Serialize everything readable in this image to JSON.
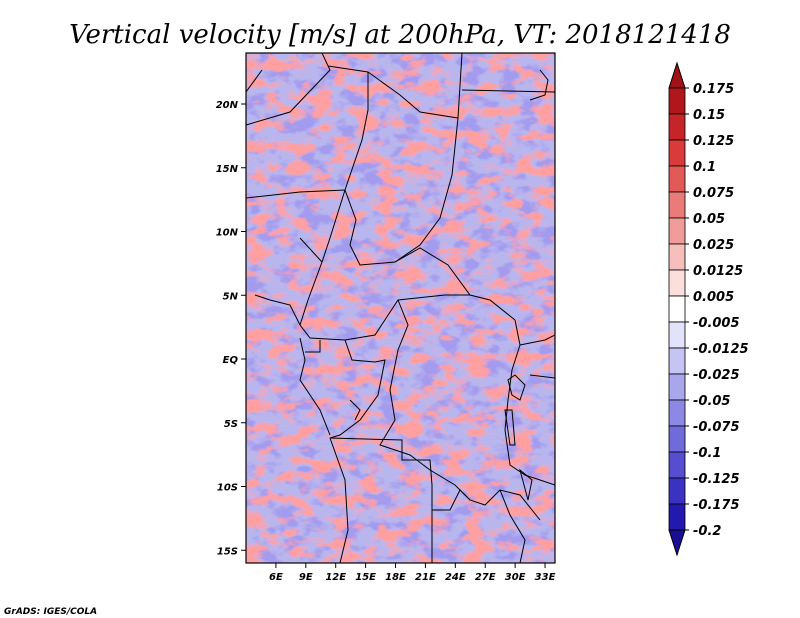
{
  "title": "Vertical velocity [m/s] at 200hPa, VT: 2018121418",
  "credit": "GrADS: IGES/COLA",
  "map": {
    "lon_range": [
      3,
      34
    ],
    "lat_range": [
      -16,
      24
    ],
    "lon_ticks": [
      6,
      9,
      12,
      15,
      18,
      21,
      24,
      27,
      30,
      33
    ],
    "lon_labels": [
      "6E",
      "9E",
      "12E",
      "15E",
      "18E",
      "21E",
      "24E",
      "27E",
      "30E",
      "33E"
    ],
    "lat_ticks": [
      20,
      15,
      10,
      5,
      0,
      -5,
      -10,
      -15
    ],
    "lat_labels": [
      "20N",
      "15N",
      "10N",
      "5N",
      "EQ",
      "5S",
      "10S",
      "15S"
    ]
  },
  "colorbar": {
    "labels": [
      "0.175",
      "0.15",
      "0.125",
      "0.1",
      "0.075",
      "0.05",
      "0.025",
      "0.0125",
      "0.005",
      "-0.005",
      "-0.0125",
      "-0.025",
      "-0.05",
      "-0.075",
      "-0.1",
      "-0.125",
      "-0.175",
      "-0.2"
    ],
    "colors": [
      "#b0171c",
      "#c52428",
      "#d93a3a",
      "#e25a58",
      "#ea7b78",
      "#f09d9a",
      "#f6bfbc",
      "#fadfdd",
      "#ffffff",
      "#e2e2fa",
      "#c6c4f3",
      "#aaa6ec",
      "#8d88e4",
      "#716ada",
      "#574ecf",
      "#3c32c1",
      "#2419ae"
    ],
    "top_arrow_color": "#a01218",
    "bottom_arrow_color": "#1a0d96"
  },
  "colors": {
    "positive": "#e25a58",
    "negative": "#6b64d8",
    "boundary": "#000000"
  }
}
